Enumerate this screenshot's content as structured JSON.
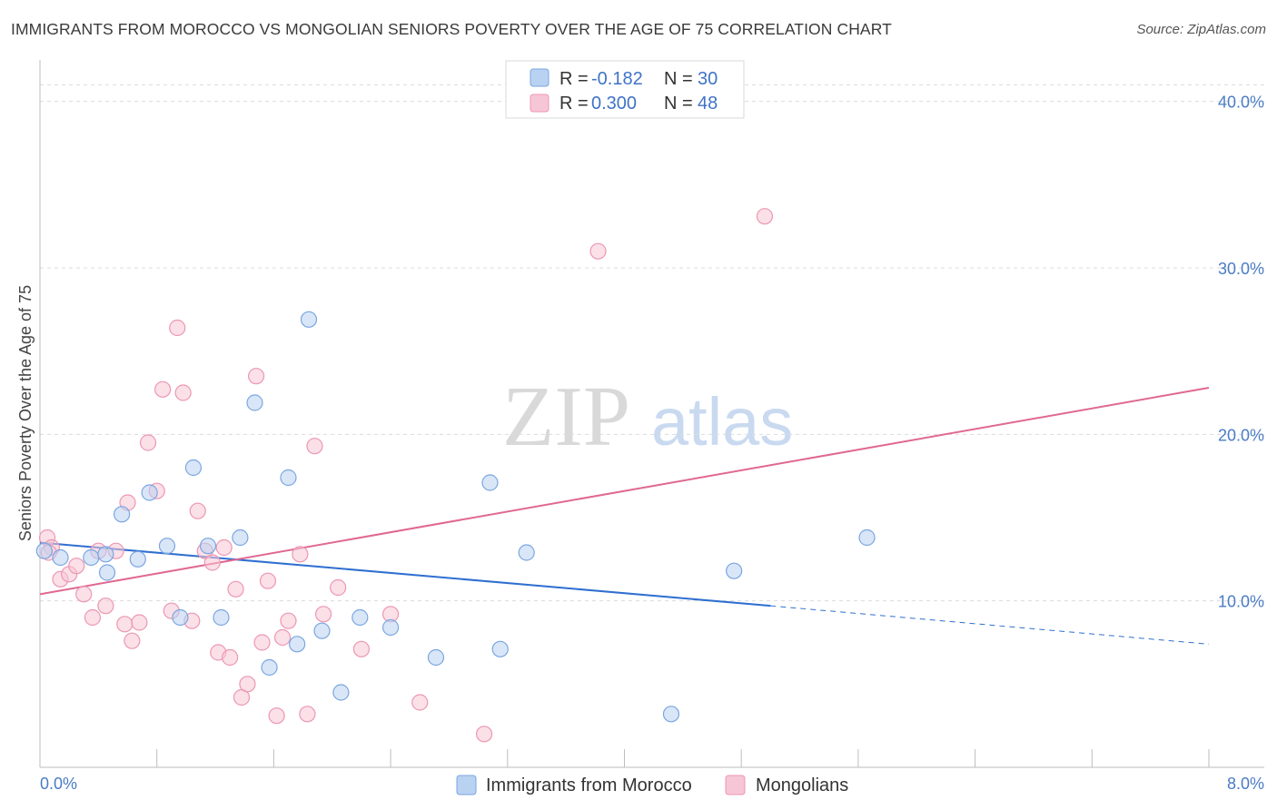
{
  "title": "IMMIGRANTS FROM MOROCCO VS MONGOLIAN SENIORS POVERTY OVER THE AGE OF 75 CORRELATION CHART",
  "source": "Source: ZipAtlas.com",
  "watermark": {
    "zip": "ZIP",
    "atlas": "atlas"
  },
  "colors": {
    "blue_fill": "#b9d2f2",
    "blue_stroke": "#7aa6e0",
    "blue_line": "#2f6fd0",
    "pink_fill": "#f7c6d6",
    "pink_stroke": "#ec97b3",
    "pink_line": "#e06892",
    "tick_text": "#4a7cc4"
  },
  "legend": {
    "items": [
      {
        "r_label": "R =",
        "r_value": "-0.182",
        "n_label": "N =",
        "n_value": "30",
        "color": "blue"
      },
      {
        "r_label": "R =",
        "r_value": "0.300",
        "n_label": "N =",
        "n_value": "48",
        "color": "pink"
      }
    ]
  },
  "bottom_legend": [
    "Immigrants from Morocco",
    "Mongolians"
  ],
  "chart_data": {
    "type": "scatter",
    "title": "IMMIGRANTS FROM MOROCCO VS MONGOLIAN SENIORS POVERTY OVER THE AGE OF 75 CORRELATION CHART",
    "xlabel": "",
    "ylabel": "Seniors Poverty Over the Age of 75",
    "xlim": [
      0,
      8.0
    ],
    "ylim": [
      0,
      42
    ],
    "x_tick_labels": [
      "0.0%",
      "8.0%"
    ],
    "y_ticks": [
      10,
      20,
      30,
      40
    ],
    "y_tick_labels": [
      "10.0%",
      "20.0%",
      "30.0%",
      "40.0%"
    ],
    "grid": "horizontal dashed",
    "legend_position": "top-center",
    "series": [
      {
        "name": "Immigrants from Morocco",
        "color": "blue",
        "points": [
          [
            0.03,
            13.0
          ],
          [
            0.14,
            12.6
          ],
          [
            0.35,
            12.6
          ],
          [
            0.45,
            12.8
          ],
          [
            0.46,
            11.7
          ],
          [
            0.56,
            15.2
          ],
          [
            0.67,
            12.5
          ],
          [
            0.75,
            16.5
          ],
          [
            0.87,
            13.3
          ],
          [
            0.96,
            9.0
          ],
          [
            1.05,
            18.0
          ],
          [
            1.15,
            13.3
          ],
          [
            1.24,
            9.0
          ],
          [
            1.37,
            13.8
          ],
          [
            1.47,
            21.9
          ],
          [
            1.57,
            6.0
          ],
          [
            1.7,
            17.4
          ],
          [
            1.76,
            7.4
          ],
          [
            1.84,
            26.9
          ],
          [
            1.93,
            8.2
          ],
          [
            2.06,
            4.5
          ],
          [
            2.19,
            9.0
          ],
          [
            2.4,
            8.4
          ],
          [
            2.71,
            6.6
          ],
          [
            3.08,
            17.1
          ],
          [
            3.15,
            7.1
          ],
          [
            3.33,
            12.9
          ],
          [
            4.32,
            3.2
          ],
          [
            4.75,
            11.8
          ],
          [
            5.66,
            13.8
          ]
        ],
        "trend": {
          "x0": 0.0,
          "y0": 13.5,
          "x1": 5.0,
          "y1": 9.7,
          "dash_x1": 8.0,
          "dash_y1": 7.4
        }
      },
      {
        "name": "Mongolians",
        "color": "pink",
        "points": [
          [
            0.05,
            13.8
          ],
          [
            0.08,
            13.2
          ],
          [
            0.14,
            11.3
          ],
          [
            0.2,
            11.6
          ],
          [
            0.25,
            12.1
          ],
          [
            0.3,
            10.4
          ],
          [
            0.36,
            9.0
          ],
          [
            0.4,
            13.0
          ],
          [
            0.45,
            9.7
          ],
          [
            0.52,
            13.0
          ],
          [
            0.58,
            8.6
          ],
          [
            0.63,
            7.6
          ],
          [
            0.68,
            8.7
          ],
          [
            0.74,
            19.5
          ],
          [
            0.8,
            16.6
          ],
          [
            0.84,
            22.7
          ],
          [
            0.9,
            9.4
          ],
          [
            0.94,
            26.4
          ],
          [
            0.98,
            22.5
          ],
          [
            1.04,
            8.8
          ],
          [
            1.08,
            15.4
          ],
          [
            1.13,
            13.0
          ],
          [
            1.18,
            12.3
          ],
          [
            1.22,
            6.9
          ],
          [
            1.26,
            13.2
          ],
          [
            1.3,
            6.6
          ],
          [
            1.34,
            10.7
          ],
          [
            1.38,
            4.2
          ],
          [
            1.42,
            5.0
          ],
          [
            1.48,
            23.5
          ],
          [
            1.52,
            7.5
          ],
          [
            1.56,
            11.2
          ],
          [
            1.62,
            3.1
          ],
          [
            1.66,
            7.8
          ],
          [
            1.7,
            8.8
          ],
          [
            1.78,
            12.8
          ],
          [
            1.83,
            3.2
          ],
          [
            1.88,
            19.3
          ],
          [
            1.94,
            9.2
          ],
          [
            2.04,
            10.8
          ],
          [
            2.2,
            7.1
          ],
          [
            2.4,
            9.2
          ],
          [
            2.6,
            3.9
          ],
          [
            3.04,
            2.0
          ],
          [
            3.82,
            31.0
          ],
          [
            4.96,
            33.1
          ],
          [
            0.06,
            12.9
          ],
          [
            0.6,
            15.9
          ]
        ],
        "trend": {
          "x0": 0.0,
          "y0": 10.4,
          "x1": 8.0,
          "y1": 22.8
        }
      }
    ]
  }
}
